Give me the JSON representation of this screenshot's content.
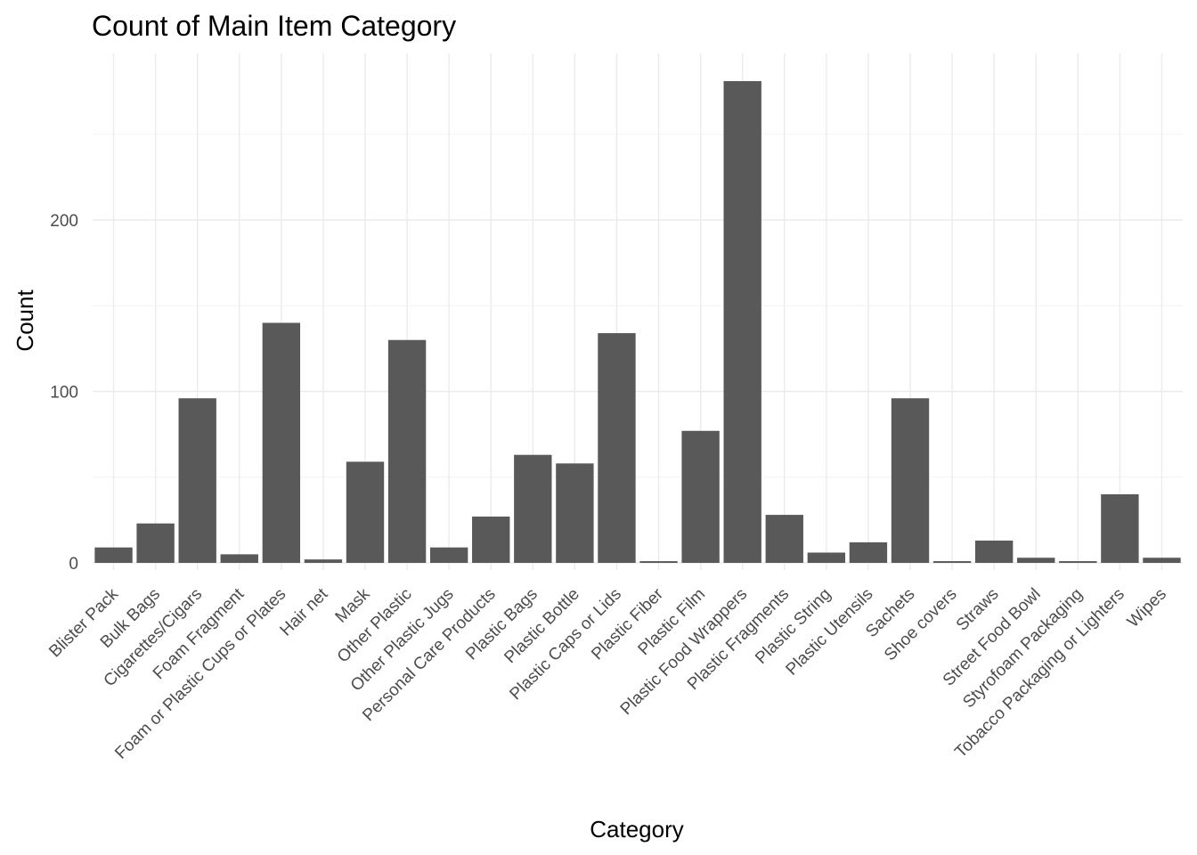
{
  "chart_data": {
    "type": "bar",
    "title": "Count of Main Item Category",
    "xlabel": "Category",
    "ylabel": "Count",
    "ylim": [
      0,
      290
    ],
    "yticks": [
      0,
      100,
      200
    ],
    "grid": true,
    "legend": "none",
    "bar_color": "#595959",
    "categories": [
      "Blister Pack",
      "Bulk Bags",
      "Cigarettes/Cigars",
      "Foam Fragment",
      "Foam or Plastic Cups or Plates",
      "Hair net",
      "Mask",
      "Other Plastic",
      "Other Plastic Jugs",
      "Personal Care Products",
      "Plastic Bags",
      "Plastic Bottle",
      "Plastic Caps or Lids",
      "Plastic Fiber",
      "Plastic Film",
      "Plastic Food Wrappers",
      "Plastic Fragments",
      "Plastic String",
      "Plastic Utensils",
      "Sachets",
      "Shoe covers",
      "Straws",
      "Street Food Bowl",
      "Styrofoam Packaging",
      "Tobacco Packaging or Lighters",
      "Wipes"
    ],
    "values": [
      9,
      23,
      96,
      5,
      140,
      2,
      59,
      130,
      9,
      27,
      63,
      58,
      134,
      1,
      77,
      281,
      28,
      6,
      12,
      96,
      1,
      13,
      3,
      1,
      40,
      3
    ]
  }
}
